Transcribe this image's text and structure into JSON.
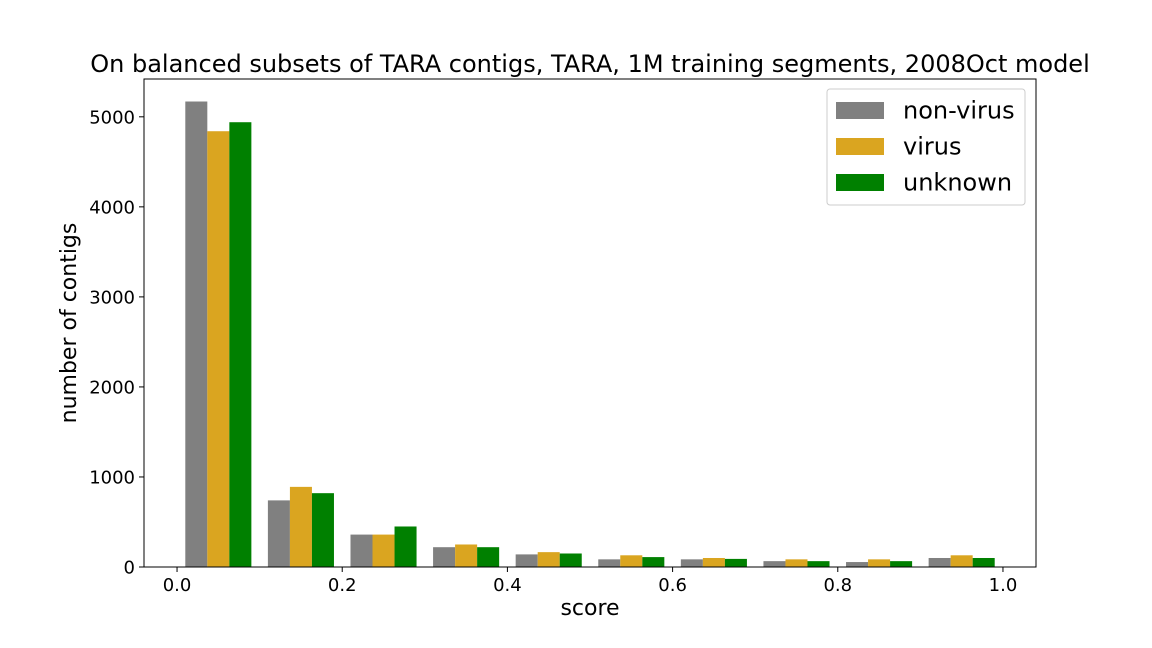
{
  "chart_data": {
    "type": "bar",
    "title": "On balanced subsets of TARA contigs, TARA, 1M training segments, 2008Oct model",
    "xlabel": "score",
    "ylabel": "number of contigs",
    "xlim": [
      -0.04,
      1.04
    ],
    "ylim": [
      0,
      5420
    ],
    "xticks": [
      0.0,
      0.2,
      0.4,
      0.6,
      0.8,
      1.0
    ],
    "xtick_labels": [
      "0.0",
      "0.2",
      "0.4",
      "0.6",
      "0.8",
      "1.0"
    ],
    "yticks": [
      0,
      1000,
      2000,
      3000,
      4000,
      5000
    ],
    "ytick_labels": [
      "0",
      "1000",
      "2000",
      "3000",
      "4000",
      "5000"
    ],
    "bin_edges": [
      0.0,
      0.1,
      0.2,
      0.3,
      0.4,
      0.5,
      0.6,
      0.7,
      0.8,
      0.9,
      1.0
    ],
    "grid": false,
    "legend_position": "top-right",
    "series": [
      {
        "name": "non-virus",
        "color": "#808080",
        "values": [
          5170,
          740,
          360,
          220,
          140,
          85,
          85,
          65,
          55,
          100
        ]
      },
      {
        "name": "virus",
        "color": "#daa520",
        "values": [
          4840,
          890,
          360,
          250,
          165,
          130,
          100,
          85,
          85,
          130
        ]
      },
      {
        "name": "unknown",
        "color": "#008000",
        "values": [
          4940,
          820,
          450,
          220,
          150,
          110,
          90,
          65,
          65,
          100
        ]
      }
    ]
  }
}
